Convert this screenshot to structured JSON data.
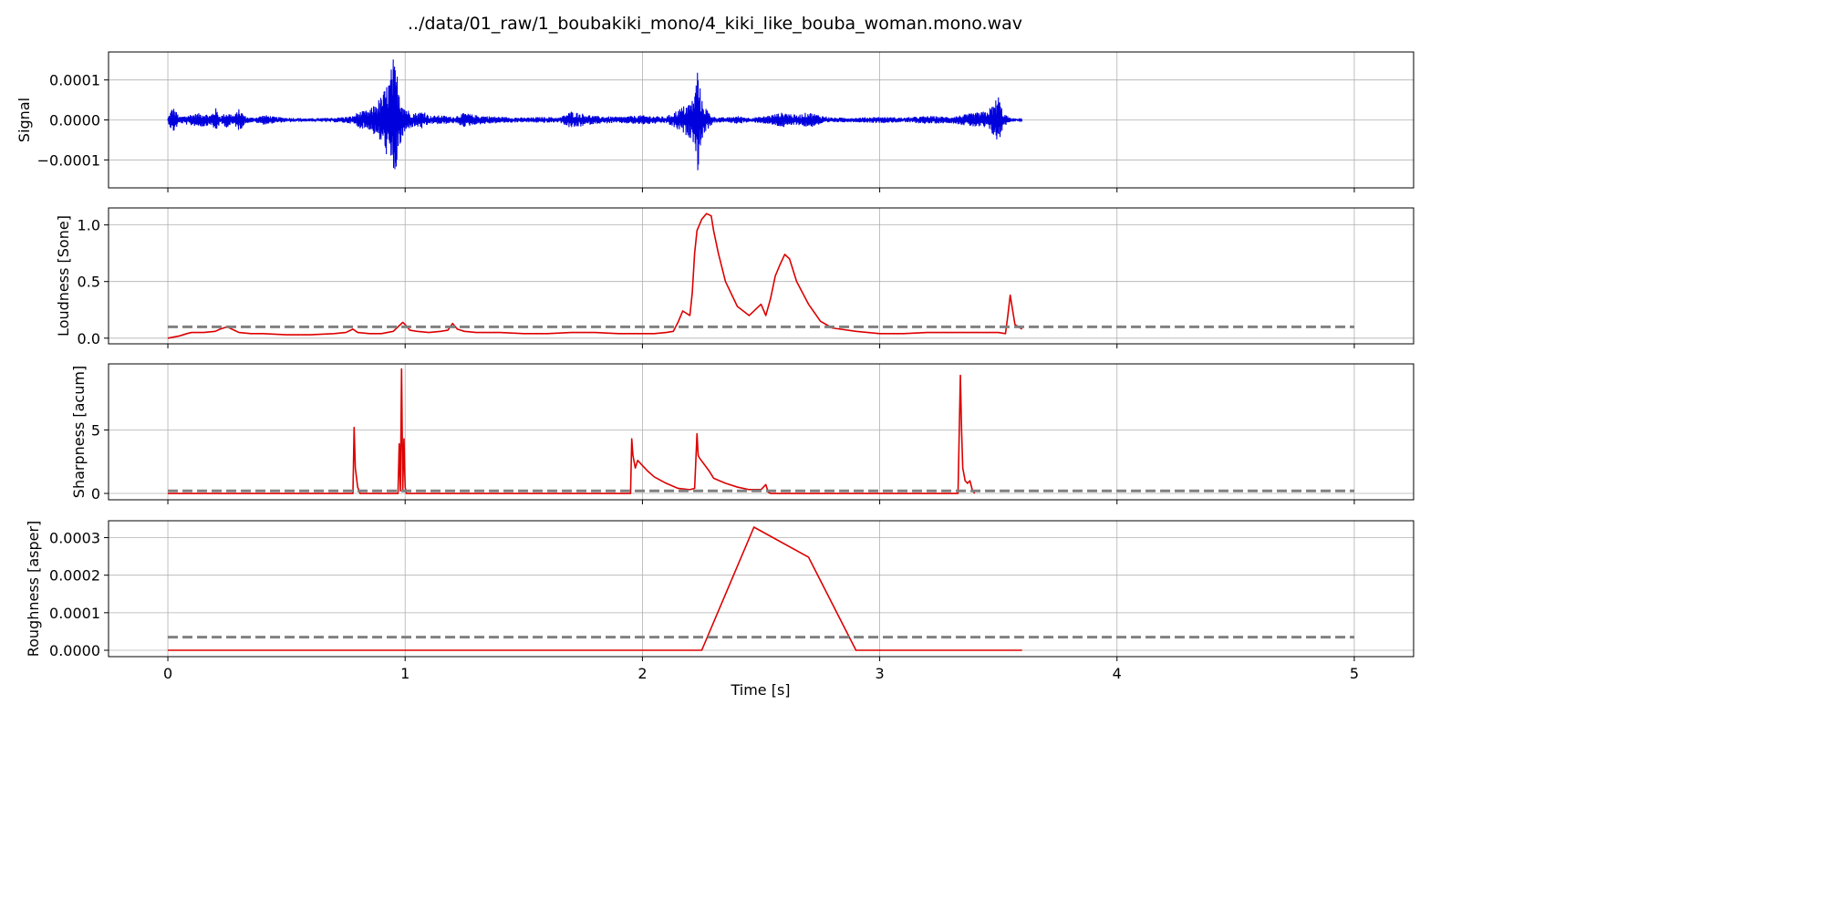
{
  "figure": {
    "title": "../data/01_raw/1_boubakiki_mono/4_kiki_like_bouba_woman.mono.wav",
    "xlabel": "Time [s]"
  },
  "chart_data": [
    {
      "type": "line",
      "panel": "signal",
      "ylabel": "Signal",
      "xlim": [
        -0.25,
        5.25
      ],
      "ylim": [
        -0.00017,
        0.00017
      ],
      "xticks": [
        0,
        1,
        2,
        3,
        4,
        5
      ],
      "yticks": [
        -0.0001,
        0.0,
        0.0001
      ],
      "ytick_labels": [
        "−0.0001",
        "0.0000",
        "0.0001"
      ],
      "grid": true,
      "color": "#0000dd",
      "waveform": {
        "x_start": 0.0,
        "x_end": 3.6,
        "envelope_x": [
          0.0,
          0.02,
          0.05,
          0.1,
          0.15,
          0.18,
          0.2,
          0.22,
          0.25,
          0.28,
          0.3,
          0.33,
          0.36,
          0.4,
          0.42,
          0.45,
          0.5,
          0.55,
          0.6,
          0.65,
          0.7,
          0.75,
          0.78,
          0.8,
          0.85,
          0.9,
          0.93,
          0.95,
          0.97,
          0.98,
          1.0,
          1.02,
          1.05,
          1.08,
          1.1,
          1.15,
          1.2,
          1.25,
          1.3,
          1.4,
          1.5,
          1.6,
          1.65,
          1.7,
          1.8,
          1.9,
          2.0,
          2.1,
          2.2,
          2.22,
          2.23,
          2.25,
          2.28,
          2.3,
          2.35,
          2.4,
          2.45,
          2.5,
          2.55,
          2.6,
          2.65,
          2.7,
          2.75,
          2.8,
          2.9,
          3.0,
          3.1,
          3.2,
          3.3,
          3.4,
          3.45,
          3.48,
          3.5,
          3.52,
          3.55,
          3.6
        ],
        "envelope_y": [
          5e-06,
          3.5e-05,
          8e-06,
          1.5e-05,
          1.8e-05,
          1.2e-05,
          3.2e-05,
          1e-05,
          2e-05,
          1.2e-05,
          2.8e-05,
          8e-06,
          6e-06,
          1.2e-05,
          1.2e-05,
          8e-06,
          6e-06,
          5e-06,
          4e-06,
          5e-06,
          6e-06,
          8e-06,
          1e-05,
          2e-05,
          2.5e-05,
          6e-05,
          0.0001,
          0.000155,
          0.00011,
          6.5e-05,
          3.5e-05,
          2e-05,
          1.8e-05,
          2.5e-05,
          1e-05,
          1.2e-05,
          8e-06,
          1.8e-05,
          1.2e-05,
          8e-06,
          6e-06,
          8e-06,
          6e-06,
          2.2e-05,
          1e-05,
          8e-06,
          1.2e-05,
          8e-06,
          4.5e-05,
          6e-05,
          0.000145,
          5e-05,
          2e-05,
          8e-06,
          6e-06,
          1e-05,
          6e-06,
          8e-06,
          1.4e-05,
          2e-05,
          1.2e-05,
          2e-05,
          1.2e-05,
          6e-06,
          6e-06,
          8e-06,
          6e-06,
          1e-05,
          8e-06,
          1.8e-05,
          2.2e-05,
          4e-05,
          6.5e-05,
          1.8e-05,
          5e-06,
          2e-06
        ]
      }
    },
    {
      "type": "line",
      "panel": "loudness",
      "ylabel": "Loudness [Sone]",
      "xlim": [
        -0.25,
        5.25
      ],
      "ylim": [
        -0.05,
        1.15
      ],
      "xticks": [
        0,
        1,
        2,
        3,
        4,
        5
      ],
      "yticks": [
        0.0,
        0.5,
        1.0
      ],
      "ytick_labels": [
        "0.0",
        "0.5",
        "1.0"
      ],
      "grid": true,
      "series": [
        {
          "color": "#dd0000",
          "style": "solid",
          "x": [
            0.0,
            0.05,
            0.08,
            0.1,
            0.15,
            0.2,
            0.22,
            0.25,
            0.28,
            0.3,
            0.35,
            0.4,
            0.5,
            0.6,
            0.7,
            0.75,
            0.78,
            0.8,
            0.85,
            0.9,
            0.95,
            0.97,
            0.99,
            1.0,
            1.02,
            1.05,
            1.1,
            1.15,
            1.18,
            1.2,
            1.22,
            1.25,
            1.3,
            1.4,
            1.5,
            1.6,
            1.7,
            1.8,
            1.9,
            2.0,
            2.05,
            2.1,
            2.13,
            2.15,
            2.17,
            2.2,
            2.21,
            2.22,
            2.23,
            2.25,
            2.27,
            2.29,
            2.3,
            2.32,
            2.35,
            2.4,
            2.45,
            2.5,
            2.52,
            2.54,
            2.56,
            2.58,
            2.6,
            2.62,
            2.65,
            2.7,
            2.75,
            2.8,
            2.9,
            3.0,
            3.1,
            3.2,
            3.3,
            3.4,
            3.5,
            3.53,
            3.54,
            3.55,
            3.57,
            3.6
          ],
          "y": [
            0.0,
            0.02,
            0.04,
            0.05,
            0.05,
            0.06,
            0.08,
            0.1,
            0.07,
            0.05,
            0.04,
            0.04,
            0.03,
            0.03,
            0.04,
            0.05,
            0.08,
            0.05,
            0.04,
            0.04,
            0.06,
            0.1,
            0.14,
            0.12,
            0.07,
            0.06,
            0.05,
            0.06,
            0.07,
            0.13,
            0.08,
            0.06,
            0.05,
            0.05,
            0.04,
            0.04,
            0.05,
            0.05,
            0.04,
            0.04,
            0.04,
            0.05,
            0.06,
            0.14,
            0.24,
            0.2,
            0.4,
            0.75,
            0.95,
            1.05,
            1.1,
            1.08,
            0.95,
            0.75,
            0.5,
            0.28,
            0.2,
            0.3,
            0.2,
            0.35,
            0.55,
            0.65,
            0.74,
            0.7,
            0.5,
            0.3,
            0.15,
            0.09,
            0.06,
            0.04,
            0.04,
            0.05,
            0.05,
            0.05,
            0.05,
            0.04,
            0.2,
            0.38,
            0.12,
            0.08
          ]
        },
        {
          "color": "#808080",
          "style": "dashed",
          "x": [
            0.0,
            5.0
          ],
          "y": [
            0.1,
            0.1
          ]
        }
      ]
    },
    {
      "type": "line",
      "panel": "sharpness",
      "ylabel": "Sharpness [acum]",
      "xlim": [
        -0.25,
        5.25
      ],
      "ylim": [
        -0.5,
        10.2
      ],
      "xticks": [
        0,
        1,
        2,
        3,
        4,
        5
      ],
      "yticks": [
        0,
        5
      ],
      "ytick_labels": [
        "0",
        "5"
      ],
      "grid": true,
      "series": [
        {
          "color": "#dd0000",
          "style": "solid",
          "x": [
            0.0,
            0.78,
            0.785,
            0.79,
            0.8,
            0.81,
            0.97,
            0.975,
            0.98,
            0.985,
            0.99,
            0.995,
            1.0,
            1.005,
            1.01,
            1.95,
            1.955,
            1.96,
            1.97,
            1.98,
            2.0,
            2.02,
            2.05,
            2.1,
            2.15,
            2.2,
            2.22,
            2.23,
            2.235,
            2.24,
            2.26,
            2.28,
            2.3,
            2.35,
            2.4,
            2.45,
            2.5,
            2.52,
            2.53,
            2.54,
            3.33,
            3.34,
            3.345,
            3.35,
            3.36,
            3.37,
            3.38,
            3.39,
            3.4
          ],
          "y": [
            0.0,
            0.0,
            5.2,
            2.0,
            0.5,
            0.0,
            0.0,
            3.9,
            0.2,
            9.8,
            0.3,
            4.3,
            0.5,
            0.0,
            0.0,
            0.0,
            4.3,
            3.0,
            2.0,
            2.6,
            2.2,
            1.8,
            1.3,
            0.8,
            0.4,
            0.3,
            0.4,
            4.7,
            3.0,
            2.8,
            2.3,
            1.8,
            1.2,
            0.8,
            0.5,
            0.3,
            0.3,
            0.7,
            0.1,
            0.0,
            0.0,
            9.3,
            5.0,
            2.0,
            1.0,
            0.8,
            1.0,
            0.3,
            0.0
          ]
        },
        {
          "color": "#808080",
          "style": "dashed",
          "x": [
            0.0,
            5.0
          ],
          "y": [
            0.2,
            0.2
          ]
        }
      ]
    },
    {
      "type": "line",
      "panel": "roughness",
      "ylabel": "Roughness [asper]",
      "xlim": [
        -0.25,
        5.25
      ],
      "ylim": [
        -1.7e-05,
        0.000345
      ],
      "xticks": [
        0,
        1,
        2,
        3,
        4,
        5
      ],
      "xtick_labels": [
        "0",
        "1",
        "2",
        "3",
        "4",
        "5"
      ],
      "yticks": [
        0.0,
        0.0001,
        0.0002,
        0.0003
      ],
      "ytick_labels": [
        "0.0000",
        "0.0001",
        "0.0002",
        "0.0003"
      ],
      "grid": true,
      "series": [
        {
          "color": "#dd0000",
          "style": "solid",
          "x": [
            0.0,
            2.25,
            2.47,
            2.7,
            2.9,
            3.6
          ],
          "y": [
            0.0,
            0.0,
            0.000328,
            0.000248,
            0.0,
            0.0
          ]
        },
        {
          "color": "#808080",
          "style": "dashed",
          "x": [
            0.0,
            5.0
          ],
          "y": [
            3.5e-05,
            3.5e-05
          ]
        }
      ]
    }
  ]
}
